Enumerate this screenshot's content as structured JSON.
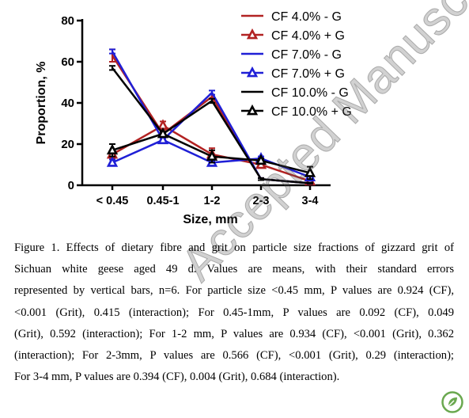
{
  "chart_data": {
    "type": "line",
    "categories": [
      "< 0.45",
      "0.45-1",
      "1-2",
      "2-3",
      "3-4"
    ],
    "xlabel": "Size, mm",
    "ylabel": "Proportion, %",
    "ylim": [
      0,
      80
    ],
    "yticks": [
      0,
      20,
      40,
      60,
      80
    ],
    "grid": false,
    "legend_position": "top-right",
    "series": [
      {
        "name": "CF 4.0% - G",
        "color": "#b22222",
        "marker": "none",
        "values": [
          63,
          25,
          43,
          3,
          1
        ],
        "errors": [
          3,
          1,
          1,
          0.5,
          0.3
        ]
      },
      {
        "name": "CF 4.0% + G",
        "color": "#b22222",
        "marker": "triangle",
        "values": [
          15,
          29,
          15,
          10,
          2
        ],
        "errors": [
          2,
          2,
          3,
          1,
          0.5
        ]
      },
      {
        "name": "CF 7.0% - G",
        "color": "#1f1fd6",
        "marker": "none",
        "values": [
          65,
          22,
          45,
          3,
          1
        ],
        "errors": [
          1,
          1,
          1,
          0.5,
          0.3
        ]
      },
      {
        "name": "CF 7.0% + G",
        "color": "#1f1fd6",
        "marker": "triangle",
        "values": [
          11,
          22,
          11,
          13,
          4
        ],
        "errors": [
          1.5,
          1,
          1,
          1,
          1
        ]
      },
      {
        "name": "CF 10.0% - G",
        "color": "#000000",
        "marker": "none",
        "values": [
          57,
          25,
          41,
          3,
          1
        ],
        "errors": [
          1,
          1,
          1,
          0.5,
          0.3
        ]
      },
      {
        "name": "CF 10.0% + G",
        "color": "#000000",
        "marker": "triangle",
        "values": [
          17,
          25,
          14,
          12,
          6
        ],
        "errors": [
          3,
          1,
          3,
          1,
          3
        ]
      }
    ]
  },
  "caption_lines": [
    "Figure 1. Effects of dietary fibre and grit on particle size fractions of gizzard grit of",
    "Sichuan white geese aged 49 d. Values are means, with their standard errors",
    "represented by vertical bars, n=6. For particle size <0.45 mm, P values are 0.924 (CF),",
    "<0.001 (Grit), 0.415 (interaction); For 0.45-1mm, P values are 0.092 (CF), 0.049",
    "(Grit), 0.592 (interaction); For 1-2 mm, P values are 0.934 (CF), <0.001 (Grit), 0.362",
    "(interaction); For 2-3mm, P values are 0.566 (CF), <0.001 (Grit), 0.29 (interaction);",
    "For 3-4 mm, P values are 0.394 (CF), 0.004 (Grit), 0.684 (interaction)."
  ],
  "watermark": "Accepted Manuscript",
  "logo_icon": "leaf-badge-icon"
}
